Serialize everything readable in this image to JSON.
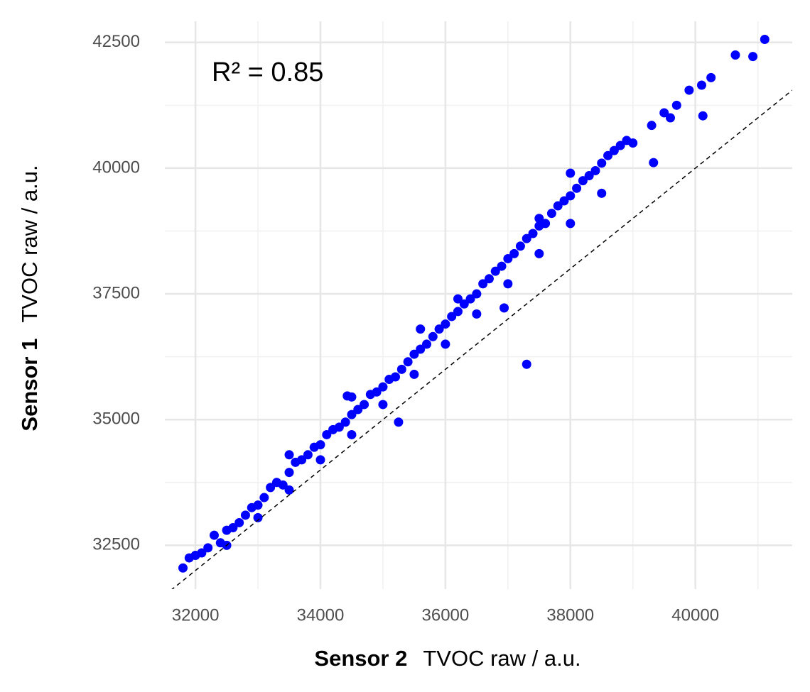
{
  "chart_data": {
    "type": "scatter",
    "annotation": "R² = 0.85",
    "x_label": {
      "bold": "Sensor 2",
      "text": "TVOC raw / a.u."
    },
    "y_label": {
      "bold": "Sensor 1",
      "text": "TVOC raw / a.u."
    },
    "color": "#0000ff",
    "grid": true,
    "xlim": [
      31510,
      41550
    ],
    "ylim": [
      31630,
      42920
    ],
    "xticks": [
      32000,
      34000,
      36000,
      38000,
      40000
    ],
    "yticks": [
      32500,
      35000,
      37500,
      40000,
      42500
    ],
    "x_minor_ticks": [
      33000,
      35000,
      37000,
      39000,
      41000
    ],
    "y_minor_ticks": [
      33750,
      36250,
      38750,
      41250
    ],
    "reference_line": {
      "slope": 1,
      "intercept": 0,
      "style": "dashed"
    },
    "x": [
      31800,
      31900,
      32000,
      32100,
      32200,
      32300,
      32400,
      32500,
      32600,
      32700,
      32800,
      32900,
      33000,
      33100,
      33200,
      33300,
      33400,
      33500,
      33600,
      33700,
      33800,
      33900,
      34000,
      34100,
      34200,
      34300,
      34400,
      34500,
      34600,
      34700,
      34800,
      34900,
      35000,
      35100,
      35200,
      35300,
      35400,
      35500,
      35600,
      35700,
      35800,
      35900,
      36000,
      36100,
      36200,
      36300,
      36400,
      36500,
      36600,
      36700,
      36800,
      36900,
      37000,
      37100,
      37200,
      37300,
      37400,
      37500,
      37600,
      37700,
      37800,
      37900,
      38000,
      38100,
      38200,
      38300,
      38400,
      38500,
      38600,
      38700,
      38800,
      38900,
      39000,
      39300,
      39500,
      39700,
      39900,
      40100,
      40250,
      32500,
      33000,
      33500,
      34000,
      34500,
      35000,
      35500,
      36000,
      36500,
      37000,
      37500,
      38000,
      38500,
      39600,
      33500,
      34500,
      35600,
      36200,
      37500,
      38000,
      37300,
      35250,
      34430,
      36940,
      39330,
      40120,
      41110,
      40920,
      40640
    ],
    "values": [
      32050,
      32250,
      32300,
      32350,
      32450,
      32700,
      32550,
      32800,
      32850,
      32950,
      33100,
      33250,
      33300,
      33450,
      33650,
      33750,
      33700,
      33950,
      34150,
      34200,
      34300,
      34450,
      34500,
      34700,
      34800,
      34850,
      34950,
      35100,
      35200,
      35300,
      35500,
      35550,
      35650,
      35800,
      35850,
      36000,
      36150,
      36300,
      36400,
      36500,
      36650,
      36800,
      36900,
      37050,
      37150,
      37300,
      37400,
      37500,
      37700,
      37800,
      37950,
      38050,
      38200,
      38300,
      38450,
      38600,
      38700,
      38850,
      38900,
      39100,
      39250,
      39350,
      39450,
      39600,
      39750,
      39850,
      39950,
      40100,
      40250,
      40350,
      40450,
      40550,
      40500,
      40850,
      41100,
      41250,
      41550,
      41650,
      41800,
      32500,
      33050,
      33600,
      34200,
      34700,
      35300,
      35900,
      36500,
      37100,
      37700,
      38300,
      38900,
      39500,
      41000,
      34300,
      35450,
      36800,
      37400,
      39000,
      39900,
      36100,
      34950,
      35470,
      37220,
      40110,
      41040,
      42560,
      42220,
      42250
    ]
  }
}
